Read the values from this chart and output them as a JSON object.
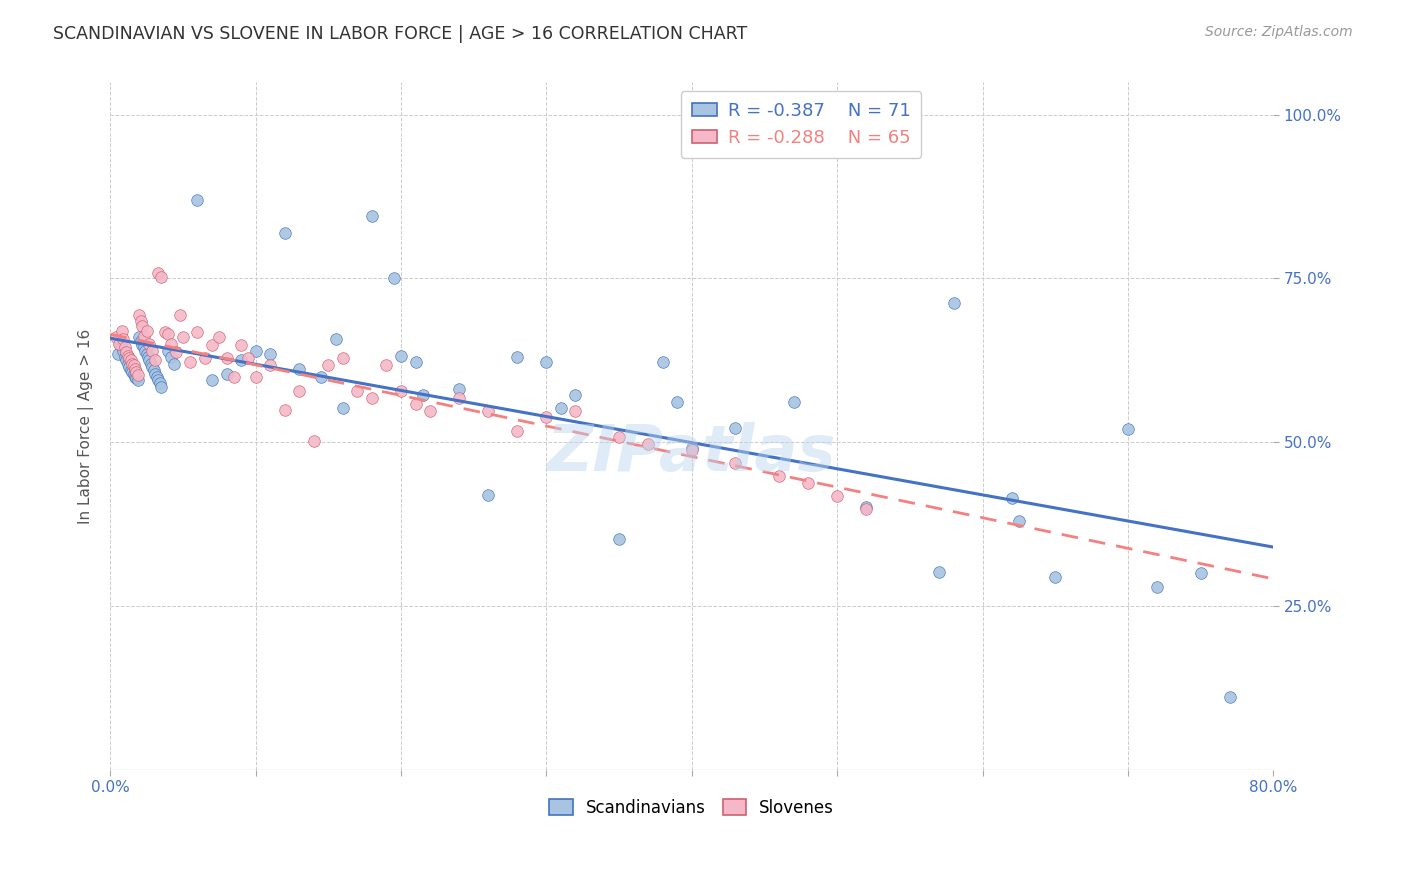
{
  "title": "SCANDINAVIAN VS SLOVENE IN LABOR FORCE | AGE > 16 CORRELATION CHART",
  "source": "Source: ZipAtlas.com",
  "ylabel": "In Labor Force | Age > 16",
  "x_min": 0.0,
  "x_max": 0.8,
  "y_min": 0.0,
  "y_max": 1.05,
  "x_ticks": [
    0.0,
    0.1,
    0.2,
    0.3,
    0.4,
    0.5,
    0.6,
    0.7,
    0.8
  ],
  "x_tick_labels": [
    "0.0%",
    "",
    "",
    "",
    "",
    "",
    "",
    "",
    "80.0%"
  ],
  "y_tick_labels": [
    "25.0%",
    "50.0%",
    "75.0%",
    "100.0%"
  ],
  "y_ticks": [
    0.25,
    0.5,
    0.75,
    1.0
  ],
  "scandinavian_color": "#a8c4e0",
  "slovene_color": "#f4b8c8",
  "trend_scan_color": "#4472c4",
  "trend_slov_color": "#f48080",
  "legend_r_scan": "-0.387",
  "legend_n_scan": "71",
  "legend_r_slov": "-0.288",
  "legend_n_slov": "65",
  "watermark": "ZIPatlas",
  "scan_x": [
    0.005,
    0.007,
    0.008,
    0.009,
    0.01,
    0.011,
    0.012,
    0.013,
    0.014,
    0.015,
    0.016,
    0.017,
    0.018,
    0.019,
    0.02,
    0.021,
    0.022,
    0.023,
    0.024,
    0.025,
    0.026,
    0.027,
    0.028,
    0.029,
    0.03,
    0.031,
    0.032,
    0.033,
    0.034,
    0.035,
    0.04,
    0.042,
    0.044,
    0.06,
    0.07,
    0.08,
    0.09,
    0.1,
    0.11,
    0.12,
    0.13,
    0.145,
    0.155,
    0.16,
    0.18,
    0.195,
    0.2,
    0.21,
    0.215,
    0.24,
    0.26,
    0.28,
    0.3,
    0.31,
    0.32,
    0.35,
    0.38,
    0.39,
    0.4,
    0.43,
    0.47,
    0.52,
    0.57,
    0.58,
    0.625,
    0.7,
    0.72,
    0.75,
    0.77,
    0.65,
    0.62
  ],
  "scan_y": [
    0.635,
    0.65,
    0.645,
    0.64,
    0.63,
    0.625,
    0.62,
    0.615,
    0.61,
    0.608,
    0.605,
    0.6,
    0.598,
    0.595,
    0.66,
    0.655,
    0.648,
    0.645,
    0.64,
    0.635,
    0.63,
    0.625,
    0.62,
    0.615,
    0.61,
    0.605,
    0.6,
    0.595,
    0.59,
    0.585,
    0.64,
    0.63,
    0.62,
    0.87,
    0.595,
    0.605,
    0.625,
    0.64,
    0.635,
    0.82,
    0.612,
    0.6,
    0.658,
    0.552,
    0.845,
    0.75,
    0.632,
    0.622,
    0.572,
    0.582,
    0.42,
    0.63,
    0.622,
    0.552,
    0.572,
    0.352,
    0.622,
    0.562,
    0.492,
    0.522,
    0.562,
    0.402,
    0.302,
    0.712,
    0.38,
    0.52,
    0.28,
    0.3,
    0.112,
    0.295,
    0.415
  ],
  "slov_x": [
    0.004,
    0.006,
    0.008,
    0.009,
    0.01,
    0.011,
    0.012,
    0.013,
    0.014,
    0.015,
    0.016,
    0.017,
    0.018,
    0.019,
    0.02,
    0.021,
    0.022,
    0.023,
    0.025,
    0.027,
    0.029,
    0.031,
    0.033,
    0.035,
    0.038,
    0.04,
    0.042,
    0.045,
    0.048,
    0.05,
    0.055,
    0.06,
    0.065,
    0.07,
    0.075,
    0.08,
    0.085,
    0.09,
    0.095,
    0.1,
    0.11,
    0.12,
    0.13,
    0.14,
    0.15,
    0.16,
    0.17,
    0.18,
    0.19,
    0.2,
    0.21,
    0.22,
    0.24,
    0.26,
    0.28,
    0.3,
    0.32,
    0.35,
    0.37,
    0.4,
    0.43,
    0.46,
    0.48,
    0.5,
    0.52
  ],
  "slov_y": [
    0.66,
    0.65,
    0.67,
    0.658,
    0.645,
    0.638,
    0.632,
    0.628,
    0.625,
    0.62,
    0.618,
    0.612,
    0.608,
    0.602,
    0.695,
    0.685,
    0.678,
    0.662,
    0.67,
    0.65,
    0.64,
    0.625,
    0.758,
    0.752,
    0.668,
    0.665,
    0.65,
    0.638,
    0.695,
    0.66,
    0.622,
    0.668,
    0.628,
    0.648,
    0.66,
    0.628,
    0.6,
    0.648,
    0.628,
    0.6,
    0.618,
    0.55,
    0.578,
    0.502,
    0.618,
    0.628,
    0.578,
    0.568,
    0.618,
    0.578,
    0.558,
    0.548,
    0.568,
    0.548,
    0.518,
    0.538,
    0.548,
    0.508,
    0.498,
    0.488,
    0.468,
    0.448,
    0.438,
    0.418,
    0.398
  ],
  "background_color": "#ffffff",
  "grid_color": "#cccccc"
}
